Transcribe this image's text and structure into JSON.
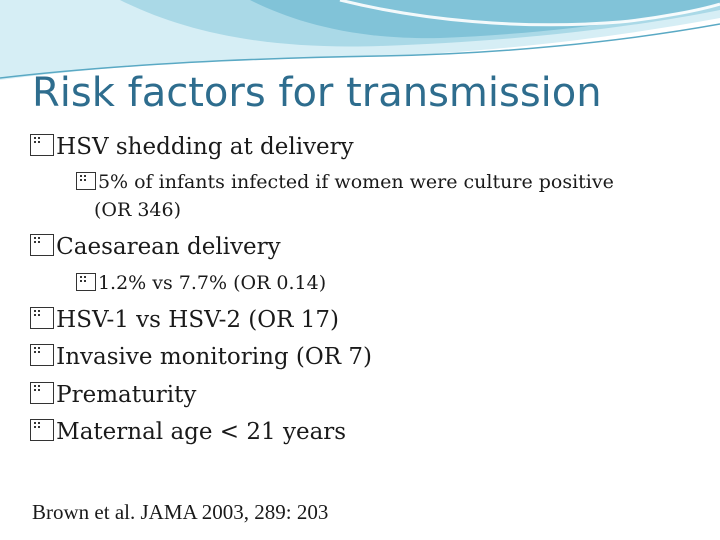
{
  "title": "Risk factors for transmission",
  "bullets": [
    {
      "text": "HSV shedding at delivery"
    },
    {
      "text": "5% of infants infected if women were culture positive",
      "cont": "(OR 346)"
    },
    {
      "text": "Caesarean delivery"
    },
    {
      "text": "1.2% vs 7.7% (OR 0.14)"
    },
    {
      "text": "HSV-1 vs HSV-2 (OR 17)"
    },
    {
      "text": "Invasive monitoring (OR 7)"
    },
    {
      "text": "Prematurity"
    },
    {
      "text": "Maternal age < 21 years"
    }
  ],
  "citation": "Brown et al. JAMA 2003, 289: 203",
  "colors": {
    "title": "#2e6d8e",
    "accent_light": "#bfe3ee",
    "accent_mid": "#7ec3d8"
  }
}
